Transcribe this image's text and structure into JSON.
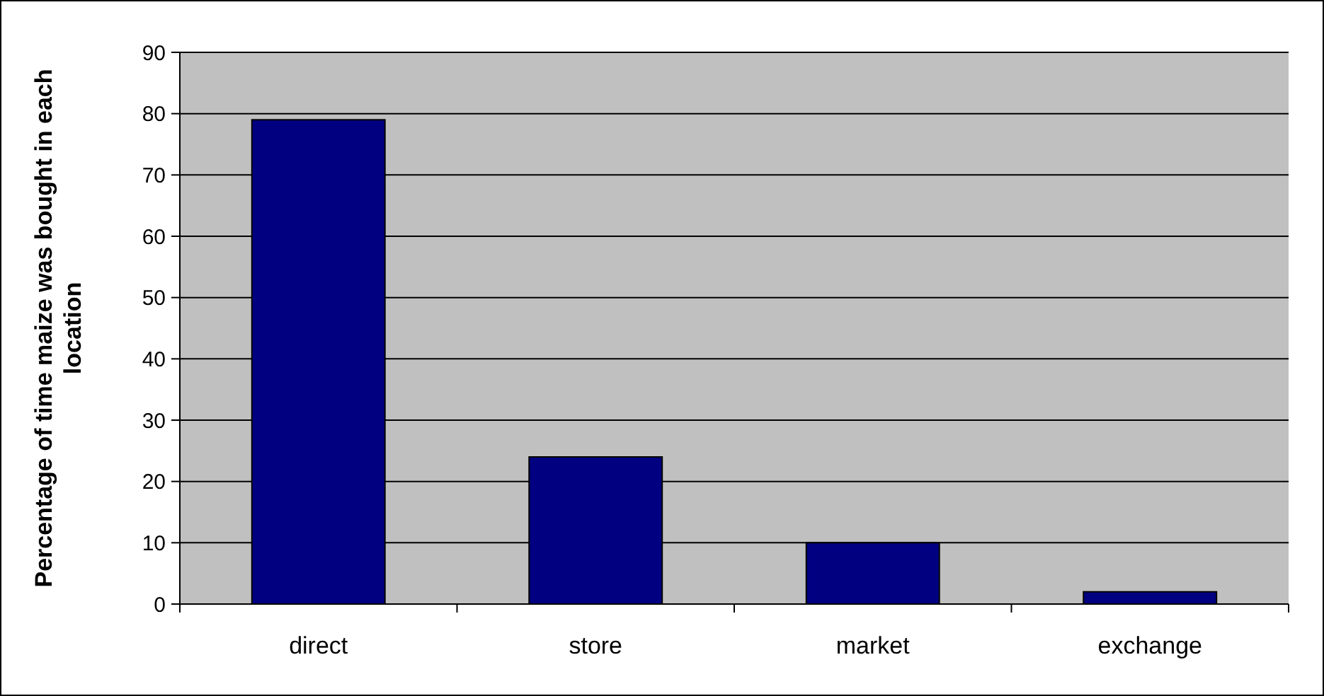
{
  "chart_data": {
    "type": "bar",
    "ylabel": "Percentage of time maize was bought in each location",
    "categories": [
      "direct",
      "store",
      "market",
      "exchange"
    ],
    "values": [
      79,
      24,
      10,
      2
    ],
    "color": "#000080",
    "ylim": [
      0,
      90
    ],
    "yticks": [
      0,
      10,
      20,
      30,
      40,
      50,
      60,
      70,
      80,
      90
    ],
    "grid": "y"
  }
}
